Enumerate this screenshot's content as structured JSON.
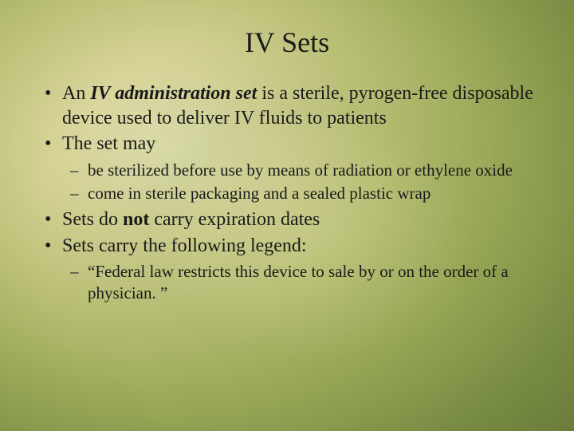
{
  "slide": {
    "title": "IV Sets",
    "title_fontsize": 36,
    "body_fontsize_lvl1": 24,
    "body_fontsize_lvl2": 21,
    "font_family": "Times New Roman",
    "text_color": "#1a1a1a",
    "background": {
      "type": "radial-gradient-olive",
      "stops": [
        "#e6e4b8",
        "#d8d49a",
        "#bcc077",
        "#9aa858",
        "#7c8f45",
        "#6a7d3a",
        "#5b6e32",
        "#4f6129"
      ]
    },
    "bullets": [
      {
        "fragments": [
          {
            "t": "An ",
            "style": "normal"
          },
          {
            "t": "IV administration set",
            "style": "bold-italic"
          },
          {
            "t": " is a sterile, pyrogen-free disposable device used to deliver IV fluids to patients",
            "style": "normal"
          }
        ]
      },
      {
        "fragments": [
          {
            "t": "The set may",
            "style": "normal"
          }
        ],
        "children": [
          {
            "fragments": [
              {
                "t": "be sterilized before use by means of radiation or ethylene oxide",
                "style": "normal"
              }
            ]
          },
          {
            "fragments": [
              {
                "t": "come in sterile packaging and a sealed plastic wrap",
                "style": "normal"
              }
            ]
          }
        ]
      },
      {
        "fragments": [
          {
            "t": "Sets do ",
            "style": "normal"
          },
          {
            "t": "not",
            "style": "bold"
          },
          {
            "t": " carry expiration dates",
            "style": "normal"
          }
        ]
      },
      {
        "fragments": [
          {
            "t": "Sets carry the following legend:",
            "style": "normal"
          }
        ],
        "children": [
          {
            "fragments": [
              {
                "t": "“Federal law restricts this device to sale by or on the order of a physician. ”",
                "style": "normal"
              }
            ]
          }
        ]
      }
    ]
  }
}
